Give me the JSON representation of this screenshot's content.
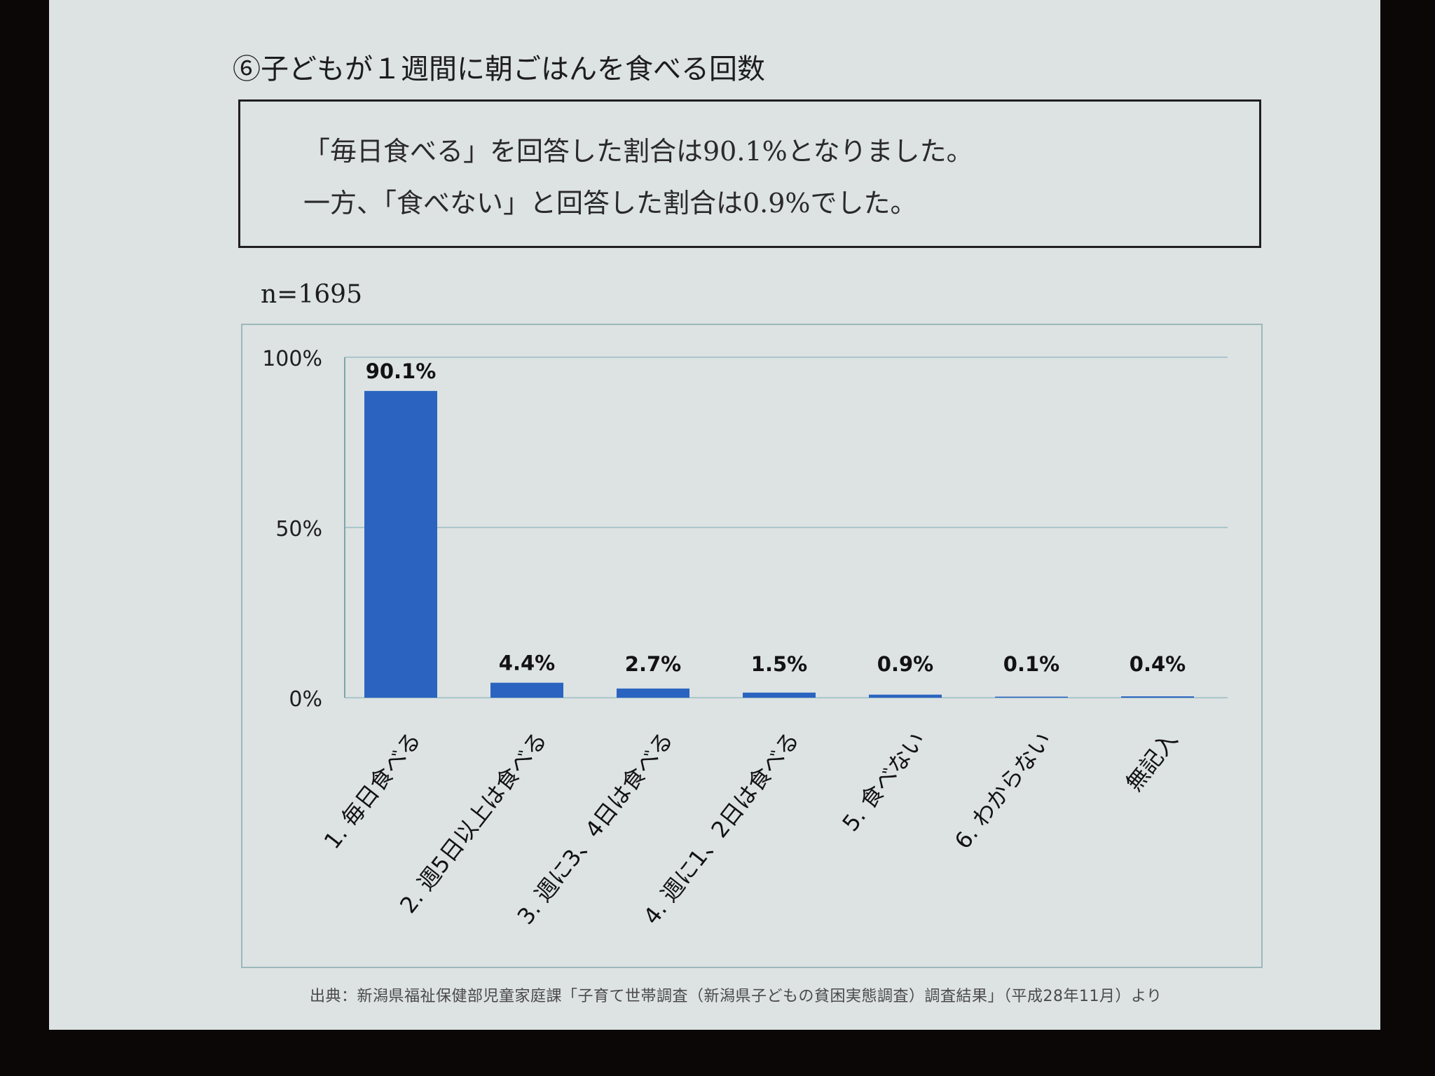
{
  "title": "⑥子どもが１週間に朝ごはんを食べる回数",
  "summary": {
    "line1": "「毎日食べる」を回答した割合は90.1%となりました。",
    "line2": "一方、「食べない」と回答した割合は0.9%でした。"
  },
  "sample_size": "n=1695",
  "source": "出典：新潟県福祉保健部児童家庭課「子育て世帯調査（新潟県子どもの貧困実態調査）調査結果」（平成28年11月）より",
  "colors": {
    "bar": "#2a64c0",
    "grid": "#aac7cb",
    "axis": "#7fa4a9",
    "slide": "#dde2e2"
  },
  "chart_data": {
    "type": "bar",
    "categories": [
      "1. 毎日食べる",
      "2. 週5日以上は食べる",
      "3. 週に3、4日は食べる",
      "4. 週に1、2日は食べる",
      "5. 食べない",
      "6. わからない",
      "無記入"
    ],
    "values": [
      90.1,
      4.4,
      2.7,
      1.5,
      0.9,
      0.1,
      0.4
    ],
    "data_labels": [
      "90.1%",
      "4.4%",
      "2.7%",
      "1.5%",
      "0.9%",
      "0.1%",
      "0.4%"
    ],
    "ylim": [
      0,
      100
    ],
    "yticks": [
      0,
      50,
      100
    ],
    "ytick_labels": [
      "0%",
      "50%",
      "100%"
    ],
    "grid": true
  }
}
